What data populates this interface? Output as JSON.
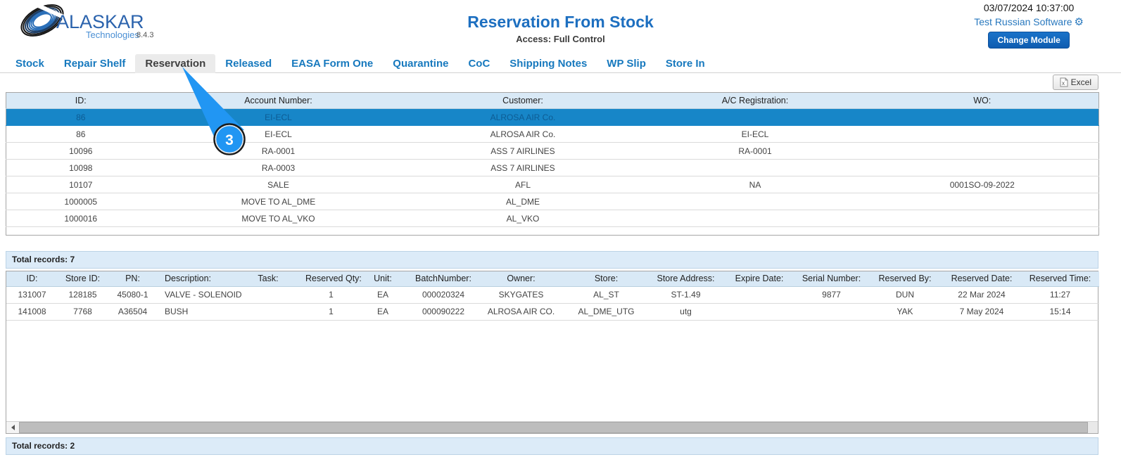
{
  "colors": {
    "accent": "#1779be",
    "title-blue": "#1d6fc0",
    "sel-bg": "#1786c8",
    "head-bg": "#d9e9f6",
    "annotation-blue": "#2196f3"
  },
  "logo": {
    "name": "ALASKAR",
    "sub": "Technologies",
    "version": "8.4.3"
  },
  "header": {
    "title": "Reservation From Stock",
    "access": "Access: Full Control",
    "datetime": "03/07/2024 10:37:00",
    "account_link": "Test Russian Software",
    "gear_icon": "gear-icon",
    "change_module_label": "Change Module"
  },
  "tabs": [
    {
      "label": "Stock",
      "active": false
    },
    {
      "label": "Repair Shelf",
      "active": false
    },
    {
      "label": "Reservation",
      "active": true
    },
    {
      "label": "Released",
      "active": false
    },
    {
      "label": "EASA Form One",
      "active": false
    },
    {
      "label": "Quarantine",
      "active": false
    },
    {
      "label": "CoC",
      "active": false
    },
    {
      "label": "Shipping Notes",
      "active": false
    },
    {
      "label": "WP Slip",
      "active": false
    },
    {
      "label": "Store In",
      "active": false
    }
  ],
  "excel": {
    "label": "Excel",
    "icon": "excel-file-icon"
  },
  "reservations_table": {
    "columns": [
      "ID:",
      "Account Number:",
      "Customer:",
      "A/C Registration:",
      "WO:"
    ],
    "rows": [
      [
        "86",
        "EI-ECL",
        "ALROSA AIR Co.",
        "",
        ""
      ],
      [
        "86",
        "EI-ECL",
        "ALROSA AIR Co.",
        "EI-ECL",
        ""
      ],
      [
        "10096",
        "RA-0001",
        "ASS 7 AIRLINES",
        "RA-0001",
        ""
      ],
      [
        "10098",
        "RA-0003",
        "ASS 7 AIRLINES",
        "",
        ""
      ],
      [
        "10107",
        "SALE",
        "AFL",
        "NA",
        "0001SO-09-2022"
      ],
      [
        "1000005",
        "MOVE TO AL_DME",
        "AL_DME",
        "",
        ""
      ],
      [
        "1000016",
        "MOVE TO AL_VKO",
        "AL_VKO",
        "",
        ""
      ]
    ],
    "selected_row_index": 0,
    "total": "Total records: 7"
  },
  "items_table": {
    "columns": [
      "ID:",
      "Store ID:",
      "PN:",
      "Description:",
      "Task:",
      "Reserved Qty:",
      "Unit:",
      "BatchNumber:",
      "Owner:",
      "Store:",
      "Store Address:",
      "Expire Date:",
      "Serial Number:",
      "Reserved By:",
      "Reserved Date:",
      "Reserved Time:"
    ],
    "rows": [
      [
        "131007",
        "128185",
        "45080-1",
        "VALVE - SOLENOID",
        "",
        "1",
        "EA",
        "000020324",
        "SKYGATES",
        "AL_ST",
        "ST-1.49",
        "",
        "9877",
        "DUN",
        "22 Mar 2024",
        "11:27"
      ],
      [
        "141008",
        "7768",
        "A36504",
        "BUSH",
        "",
        "1",
        "EA",
        "000090222",
        "ALROSA AIR CO.",
        "AL_DME_UTG",
        "utg",
        "",
        "",
        "YAK",
        "7 May 2024",
        "15:14"
      ]
    ],
    "total": "Total records: 2"
  },
  "annotation": {
    "step": "3"
  }
}
